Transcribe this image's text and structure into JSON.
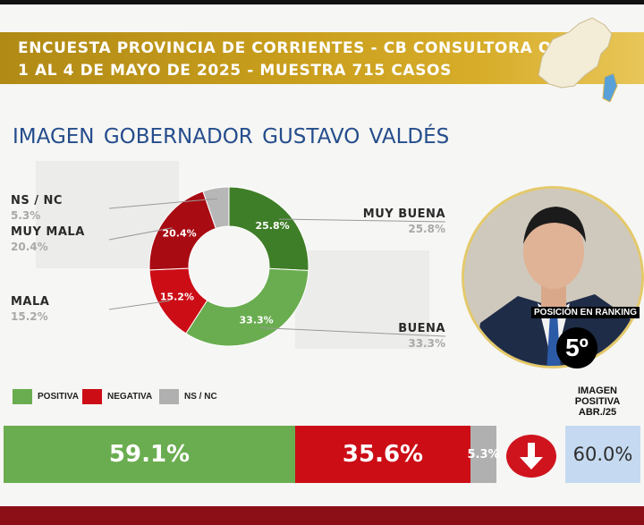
{
  "header": {
    "line1": "ENCUESTA PROVINCIA DE CORRIENTES - CB CONSULTORA OP",
    "line2": "1 AL 4 DE MAYO DE 2025 - MUESTRA 715 CASOS"
  },
  "page_title": "IMAGEN GOBERNADOR  GUSTAVO VALDÉS",
  "ranking": {
    "label": "POSICIÓN EN RANKING",
    "position": "5º"
  },
  "summary": {
    "legend": [
      {
        "label": "POSITIVA",
        "color": "#6aad50"
      },
      {
        "label": "NEGATIVA",
        "color": "#cc0d16"
      },
      {
        "label": "NS / NC",
        "color": "#b0b0b0"
      }
    ],
    "bar_labels": [
      "59.1%",
      "35.6%",
      "5.3%"
    ],
    "previous_title": "IMAGEN POSITIVA ABR./25",
    "previous_value": "60.0%",
    "trend": "down-arrow-icon"
  },
  "chart_data": [
    {
      "type": "pie",
      "title": "IMAGEN GOBERNADOR  GUSTAVO VALDÉS",
      "categories": [
        "MUY BUENA",
        "BUENA",
        "MALA",
        "MUY MALA",
        "NS / NC"
      ],
      "values": [
        25.8,
        33.3,
        15.2,
        20.4,
        5.3
      ],
      "value_labels": [
        "25.8%",
        "33.3%",
        "15.2%",
        "20.4%",
        "5.3%"
      ],
      "colors": [
        "#3f7e28",
        "#6aad50",
        "#cc0d16",
        "#a80b12",
        "#b7b7b7"
      ]
    },
    {
      "type": "bar",
      "categories": [
        "POSITIVA",
        "NEGATIVA",
        "NS / NC"
      ],
      "values": [
        59.1,
        35.6,
        5.3
      ],
      "colors": [
        "#6aad50",
        "#cc0d16",
        "#b0b0b0"
      ]
    }
  ]
}
